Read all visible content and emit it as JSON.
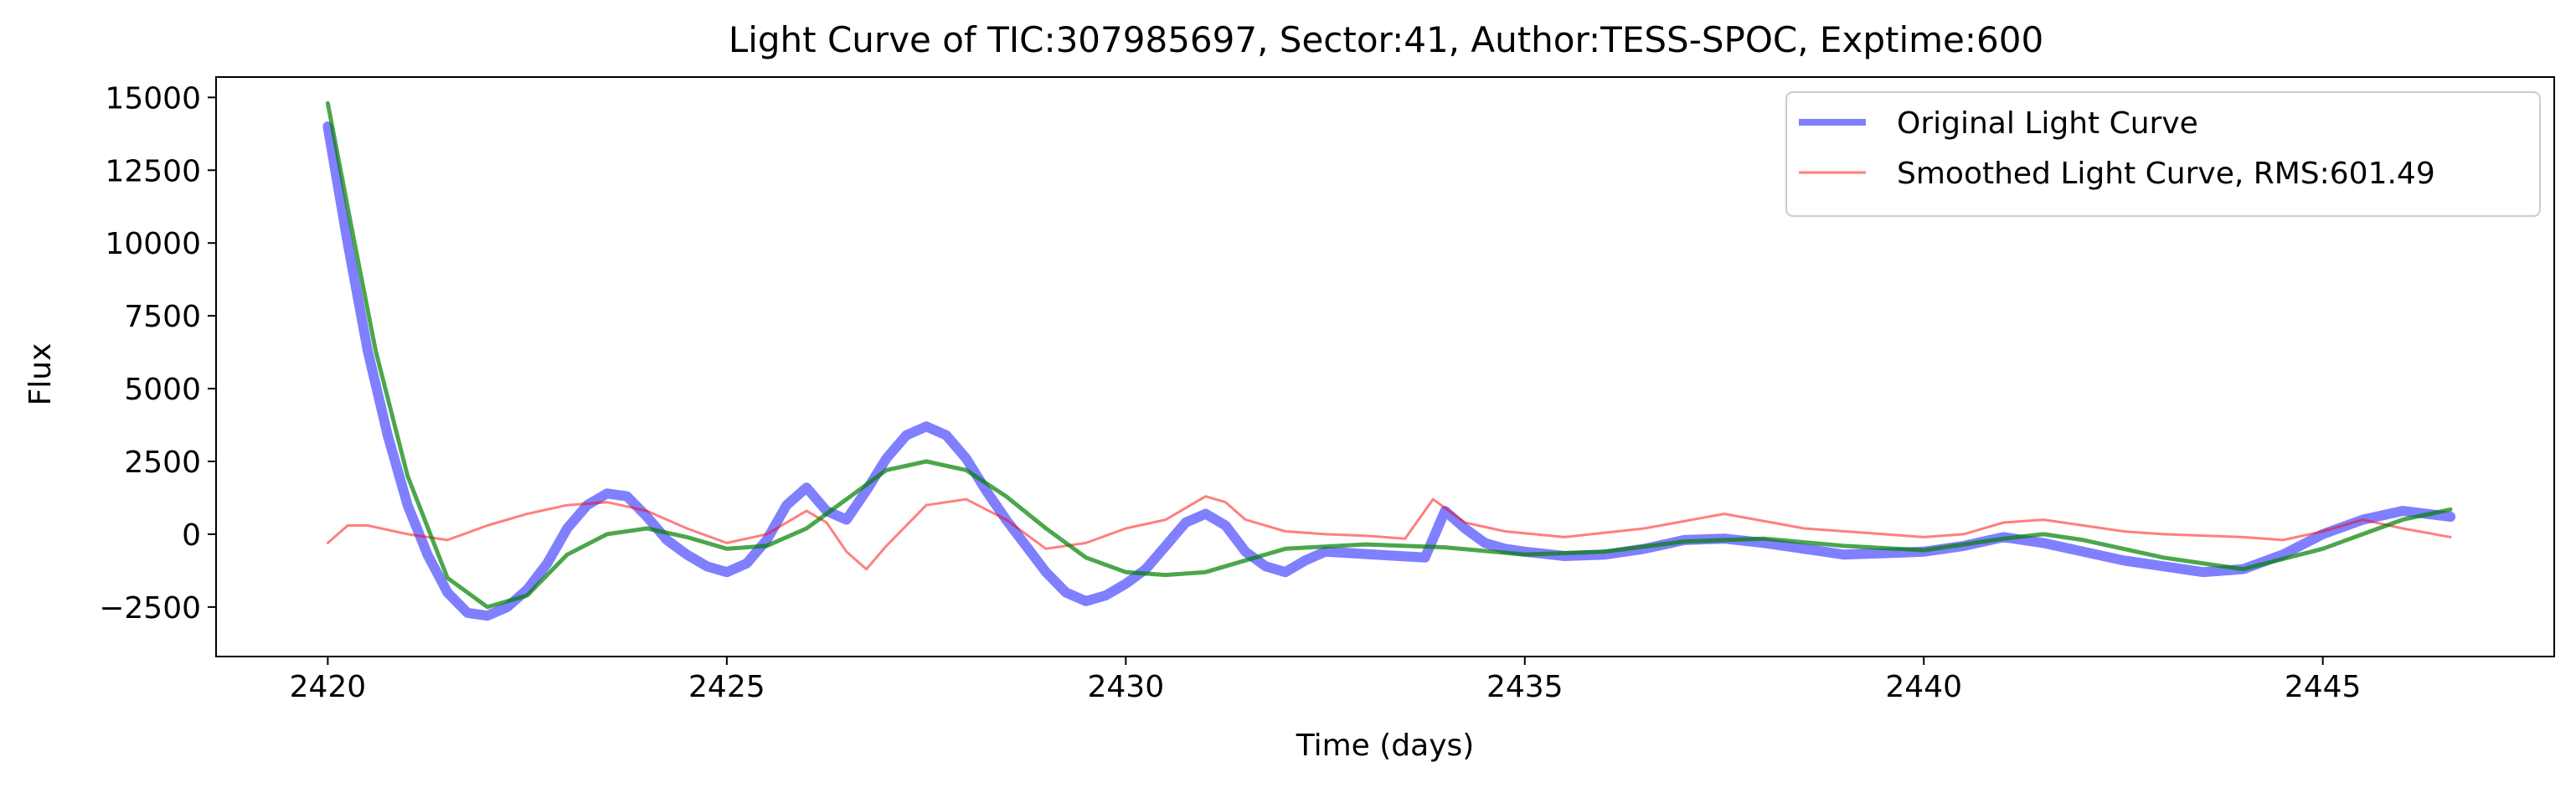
{
  "chart_data": {
    "type": "line",
    "title": "Light Curve of TIC:307985697, Sector:41, Author:TESS-SPOC, Exptime:600",
    "xlabel": "Time (days)",
    "ylabel": "Flux",
    "xlim": [
      2418.6,
      2447.9
    ],
    "ylim": [
      -4200,
      15700
    ],
    "xticks": [
      2420,
      2425,
      2430,
      2435,
      2440,
      2445
    ],
    "xtick_labels": [
      "2420",
      "2425",
      "2430",
      "2435",
      "2440",
      "2445"
    ],
    "yticks": [
      -2500,
      0,
      2500,
      5000,
      7500,
      10000,
      12500,
      15000
    ],
    "ytick_labels": [
      "−2500",
      "0",
      "2500",
      "5000",
      "7500",
      "10000",
      "12500",
      "15000"
    ],
    "grid": false,
    "legend": "top-right",
    "series": [
      {
        "name": "Original Light Curve",
        "color": "#0000ff",
        "x": [
          2420.0,
          2420.25,
          2420.5,
          2420.75,
          2421.0,
          2421.25,
          2421.5,
          2421.75,
          2422.0,
          2422.25,
          2422.5,
          2422.75,
          2423.0,
          2423.25,
          2423.5,
          2423.75,
          2424.0,
          2424.25,
          2424.5,
          2424.75,
          2425.0,
          2425.25,
          2425.5,
          2425.75,
          2426.0,
          2426.25,
          2426.5,
          2426.75,
          2427.0,
          2427.25,
          2427.5,
          2427.75,
          2428.0,
          2428.25,
          2428.5,
          2428.75,
          2429.0,
          2429.25,
          2429.5,
          2429.75,
          2430.0,
          2430.25,
          2430.5,
          2430.75,
          2431.0,
          2431.25,
          2431.5,
          2431.75,
          2432.0,
          2432.25,
          2432.5,
          2433.75,
          2434.0,
          2434.25,
          2434.5,
          2434.75,
          2435.0,
          2435.5,
          2436.0,
          2436.5,
          2437.0,
          2437.5,
          2438.0,
          2438.5,
          2439.0,
          2439.5,
          2440.0,
          2440.5,
          2441.0,
          2441.5,
          2442.0,
          2442.5,
          2443.0,
          2443.5,
          2444.0,
          2444.5,
          2445.0,
          2445.5,
          2446.0,
          2446.6
        ],
        "y": [
          14000,
          10000,
          6300,
          3400,
          1000,
          -700,
          -2000,
          -2700,
          -2800,
          -2500,
          -1900,
          -1000,
          200,
          1000,
          1400,
          1300,
          600,
          -200,
          -700,
          -1100,
          -1300,
          -1000,
          -200,
          1000,
          1600,
          800,
          500,
          1500,
          2600,
          3400,
          3700,
          3400,
          2600,
          1500,
          500,
          -400,
          -1300,
          -2000,
          -2300,
          -2100,
          -1700,
          -1200,
          -400,
          400,
          700,
          300,
          -600,
          -1100,
          -1300,
          -900,
          -600,
          -800,
          800,
          200,
          -300,
          -500,
          -600,
          -750,
          -700,
          -500,
          -200,
          -150,
          -300,
          -500,
          -700,
          -650,
          -600,
          -400,
          -100,
          -300,
          -600,
          -900,
          -1100,
          -1300,
          -1200,
          -700,
          0,
          500,
          800,
          600
        ]
      },
      {
        "name": "Smoothed Light Curve, RMS:601.49",
        "color": "#ff0000",
        "x": [
          2420.0,
          2420.25,
          2420.5,
          2421.0,
          2421.5,
          2422.0,
          2422.5,
          2423.0,
          2423.5,
          2424.0,
          2424.5,
          2425.0,
          2425.5,
          2426.0,
          2426.25,
          2426.5,
          2426.75,
          2427.0,
          2427.5,
          2428.0,
          2428.5,
          2429.0,
          2429.5,
          2430.0,
          2430.5,
          2431.0,
          2431.25,
          2431.5,
          2432.0,
          2432.5,
          2433.0,
          2433.5,
          2433.85,
          2434.25,
          2434.75,
          2435.5,
          2436.5,
          2437.5,
          2438.5,
          2439.5,
          2440.0,
          2440.5,
          2441.0,
          2441.5,
          2442.0,
          2442.5,
          2443.0,
          2444.0,
          2444.5,
          2445.0,
          2445.5,
          2446.0,
          2446.6
        ],
        "y": [
          -300,
          300,
          300,
          0,
          -200,
          300,
          700,
          1000,
          1100,
          800,
          200,
          -300,
          0,
          800,
          400,
          -600,
          -1200,
          -400,
          1000,
          1200,
          500,
          -500,
          -300,
          200,
          500,
          1300,
          1100,
          500,
          100,
          0,
          -50,
          -150,
          1200,
          400,
          100,
          -100,
          200,
          700,
          200,
          0,
          -100,
          0,
          400,
          500,
          300,
          100,
          0,
          -100,
          -200,
          100,
          500,
          200,
          -100
        ]
      },
      {
        "name": "",
        "color": "#008000",
        "x": [
          2420.0,
          2420.3,
          2420.6,
          2421.0,
          2421.5,
          2422.0,
          2422.5,
          2423.0,
          2423.5,
          2424.0,
          2424.5,
          2425.0,
          2425.5,
          2426.0,
          2426.5,
          2427.0,
          2427.5,
          2428.0,
          2428.5,
          2429.0,
          2429.5,
          2430.0,
          2430.5,
          2431.0,
          2431.5,
          2432.0,
          2433.0,
          2434.0,
          2435.0,
          2436.0,
          2437.0,
          2438.0,
          2439.0,
          2440.0,
          2441.0,
          2441.5,
          2442.0,
          2443.0,
          2444.0,
          2445.0,
          2445.5,
          2446.0,
          2446.6
        ],
        "y": [
          14800,
          10500,
          6300,
          2000,
          -1500,
          -2500,
          -2100,
          -700,
          0,
          200,
          -100,
          -500,
          -400,
          200,
          1200,
          2200,
          2500,
          2200,
          1300,
          200,
          -800,
          -1300,
          -1400,
          -1300,
          -900,
          -500,
          -350,
          -450,
          -700,
          -600,
          -250,
          -150,
          -400,
          -550,
          -150,
          0,
          -200,
          -800,
          -1200,
          -500,
          0,
          500,
          850
        ]
      }
    ]
  }
}
